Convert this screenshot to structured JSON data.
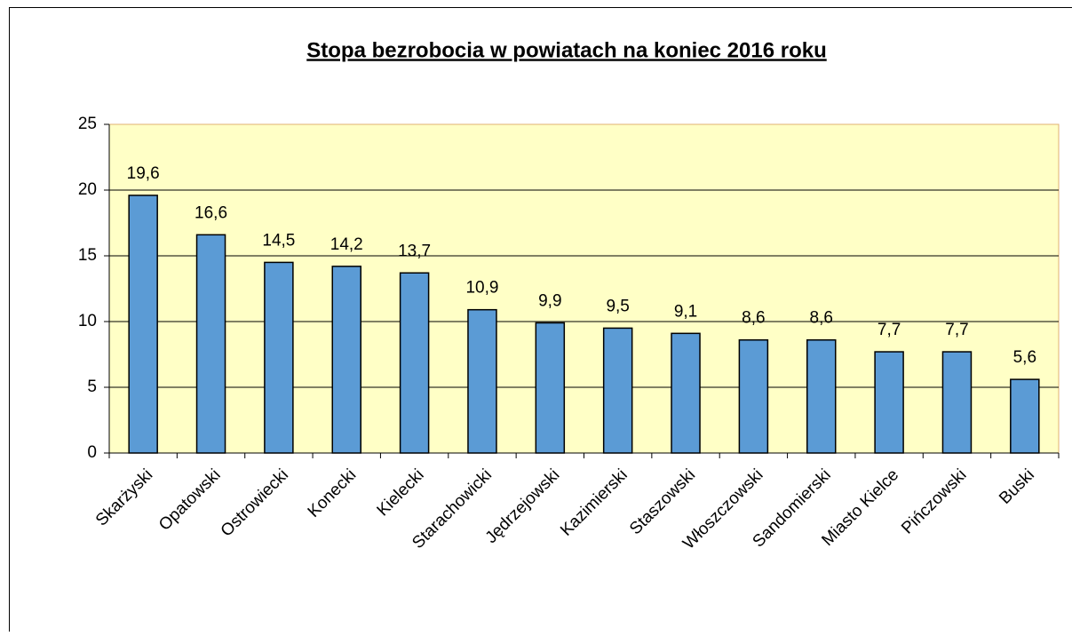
{
  "chart_data": {
    "type": "bar",
    "title": "Stopa bezrobocia w powiatach na koniec 2016 roku",
    "categories": [
      "Skarżyski",
      "Opatowski",
      "Ostrowiecki",
      "Konecki",
      "Kielecki",
      "Starachowicki",
      "Jędrzejowski",
      "Kazimierski",
      "Staszowski",
      "Włoszczowski",
      "Sandomierski",
      "Miasto Kielce",
      "Pińczowski",
      "Buski"
    ],
    "values": [
      19.6,
      16.6,
      14.5,
      14.2,
      13.7,
      10.9,
      9.9,
      9.5,
      9.1,
      8.6,
      8.6,
      7.7,
      7.7,
      5.6
    ],
    "value_labels": [
      "19,6",
      "16,6",
      "14,5",
      "14,2",
      "13,7",
      "10,9",
      "9,9",
      "9,5",
      "9,1",
      "8,6",
      "8,6",
      "7,7",
      "7,7",
      "5,6"
    ],
    "color": "#5b9bd5",
    "ylim": [
      0,
      25
    ],
    "yticks": [
      0,
      5,
      10,
      15,
      20,
      25
    ],
    "grid": true
  }
}
